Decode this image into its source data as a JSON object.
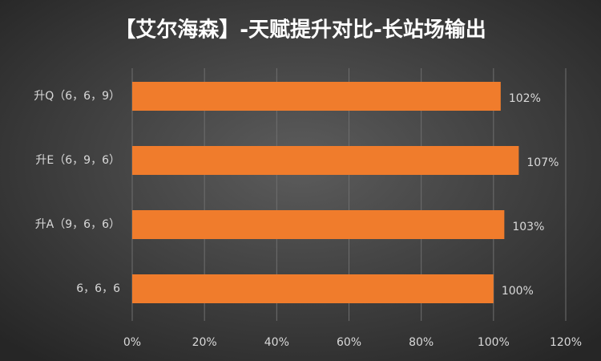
{
  "chart_data": {
    "type": "bar",
    "orientation": "horizontal",
    "title": "【艾尔海森】-天赋提升对比-长站场输出",
    "categories": [
      "升Q（6，6，9）",
      "升E（6，9，6）",
      "升A（9，6，6）",
      "6，6，6"
    ],
    "values": [
      102,
      107,
      103,
      100
    ],
    "value_labels": [
      "102%",
      "107%",
      "103%",
      "100%"
    ],
    "color": "#f07c2c",
    "xlim": [
      0,
      120
    ],
    "xticks": [
      {
        "value": 0,
        "label": "0%"
      },
      {
        "value": 20,
        "label": "20%"
      },
      {
        "value": 40,
        "label": "40%"
      },
      {
        "value": 60,
        "label": "60%"
      },
      {
        "value": 80,
        "label": "80%"
      },
      {
        "value": 100,
        "label": "100%"
      },
      {
        "value": 120,
        "label": "120%"
      }
    ],
    "grid": true
  }
}
